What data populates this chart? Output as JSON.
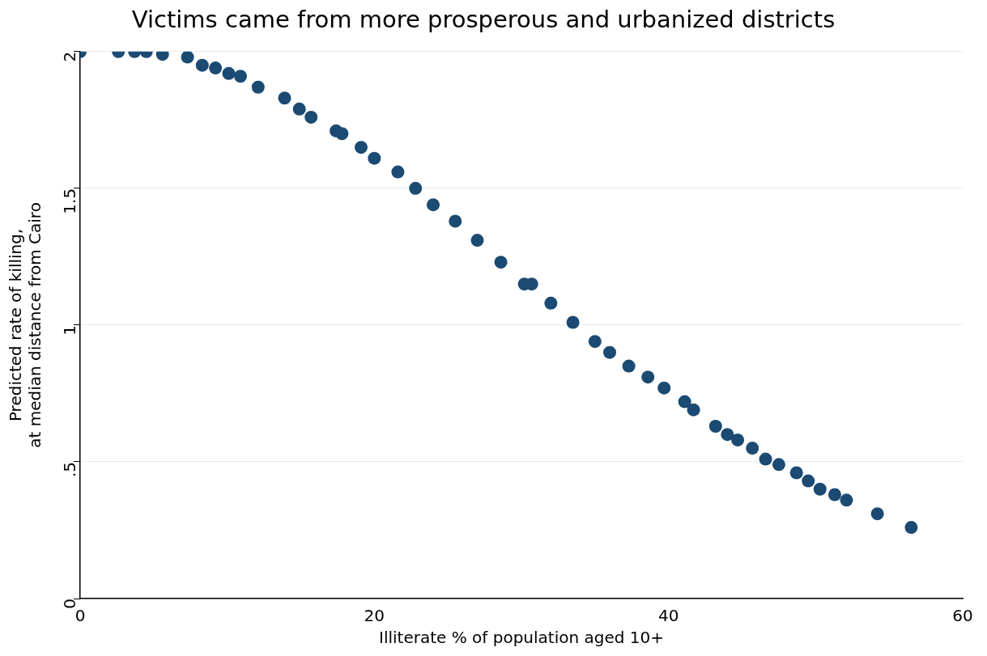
{
  "chart_data": {
    "type": "scatter",
    "title": "Victims came from more prosperous and urbanized districts",
    "xlabel": "Illiterate % of population aged 10+",
    "ylabel": "Predicted rate of killing,\nat median distance from Cairo",
    "x": [
      0,
      2.6,
      3.7,
      4.5,
      5.6,
      7.3,
      8.3,
      9.2,
      10.1,
      10.9,
      12.1,
      13.9,
      14.9,
      15.7,
      17.4,
      17.8,
      19.1,
      20,
      21.6,
      22.8,
      24,
      25.5,
      27,
      28.6,
      30.2,
      30.7,
      32,
      33.5,
      35,
      36,
      37.3,
      38.6,
      39.7,
      41.1,
      41.7,
      43.2,
      44,
      44.7,
      45.7,
      46.6,
      47.5,
      48.7,
      49.5,
      50.3,
      51.3,
      52.1,
      54.2,
      56.5
    ],
    "values": [
      2,
      2,
      2,
      2,
      1.99,
      1.98,
      1.95,
      1.94,
      1.92,
      1.91,
      1.87,
      1.83,
      1.79,
      1.76,
      1.71,
      1.7,
      1.65,
      1.61,
      1.56,
      1.5,
      1.44,
      1.38,
      1.31,
      1.23,
      1.15,
      1.15,
      1.08,
      1.01,
      0.94,
      0.9,
      0.85,
      0.81,
      0.77,
      0.72,
      0.69,
      0.63,
      0.6,
      0.58,
      0.55,
      0.51,
      0.49,
      0.46,
      0.43,
      0.4,
      0.38,
      0.36,
      0.31,
      0.26
    ],
    "color": "#1b4a72",
    "marker": "circle",
    "xlim": [
      0,
      60
    ],
    "xticks": [
      0,
      20,
      40,
      60
    ],
    "ylim": [
      0,
      2
    ],
    "yticks": [
      0,
      {
        "value": 0.5,
        "label": ".5"
      },
      1,
      1.5,
      2
    ],
    "grid": "y"
  }
}
